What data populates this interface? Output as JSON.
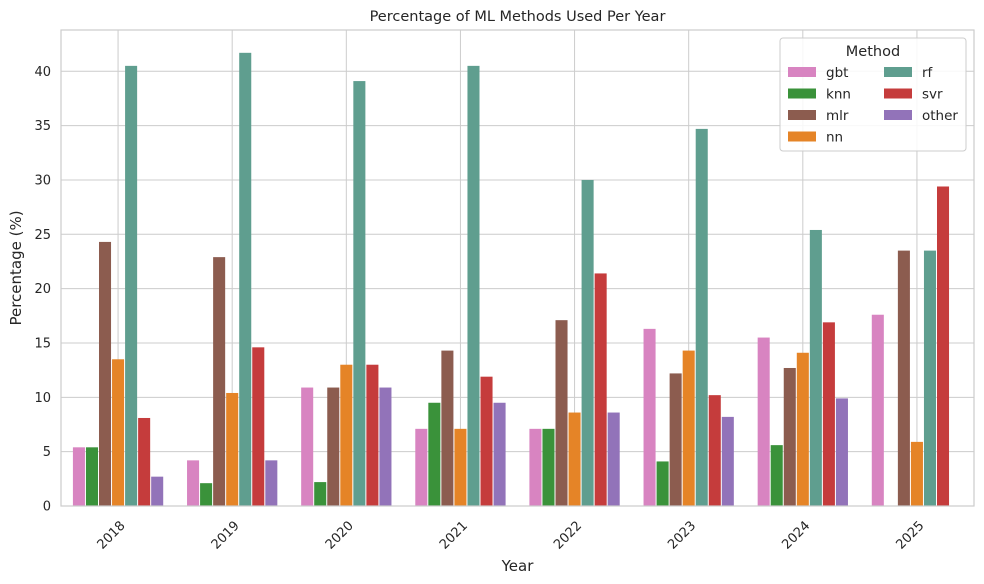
{
  "chart_data": {
    "type": "bar",
    "title": "Percentage of ML Methods Used Per Year",
    "xlabel": "Year",
    "ylabel": "Percentage (%)",
    "ylim": [
      0,
      43.8
    ],
    "yticks": [
      0,
      5,
      10,
      15,
      20,
      25,
      30,
      35,
      40
    ],
    "grid": true,
    "legend": {
      "title": "Method",
      "position": "top-right",
      "columns": 2
    },
    "categories": [
      "2018",
      "2019",
      "2020",
      "2021",
      "2022",
      "2023",
      "2024",
      "2025"
    ],
    "series": [
      {
        "name": "gbt",
        "color": "#d884c1",
        "values": [
          5.4,
          4.2,
          10.9,
          7.1,
          7.1,
          16.3,
          15.5,
          17.6
        ]
      },
      {
        "name": "knn",
        "color": "#3a923a",
        "values": [
          5.4,
          2.1,
          2.2,
          9.5,
          7.1,
          4.1,
          5.6,
          0
        ]
      },
      {
        "name": "mlr",
        "color": "#8c5c4f",
        "values": [
          24.3,
          22.9,
          10.9,
          14.3,
          17.1,
          12.2,
          12.7,
          23.5
        ]
      },
      {
        "name": "nn",
        "color": "#e58427",
        "values": [
          13.5,
          10.4,
          13.0,
          7.1,
          8.6,
          14.3,
          14.1,
          5.9
        ]
      },
      {
        "name": "rf",
        "color": "#5f9e8f",
        "values": [
          40.5,
          41.7,
          39.1,
          40.5,
          30.0,
          34.7,
          25.4,
          23.5
        ]
      },
      {
        "name": "svr",
        "color": "#c53c3c",
        "values": [
          8.1,
          14.6,
          13.0,
          11.9,
          21.4,
          10.2,
          16.9,
          29.4
        ]
      },
      {
        "name": "other",
        "color": "#9273b9",
        "values": [
          2.7,
          4.2,
          10.9,
          9.5,
          8.6,
          8.2,
          9.9,
          0
        ]
      }
    ]
  }
}
